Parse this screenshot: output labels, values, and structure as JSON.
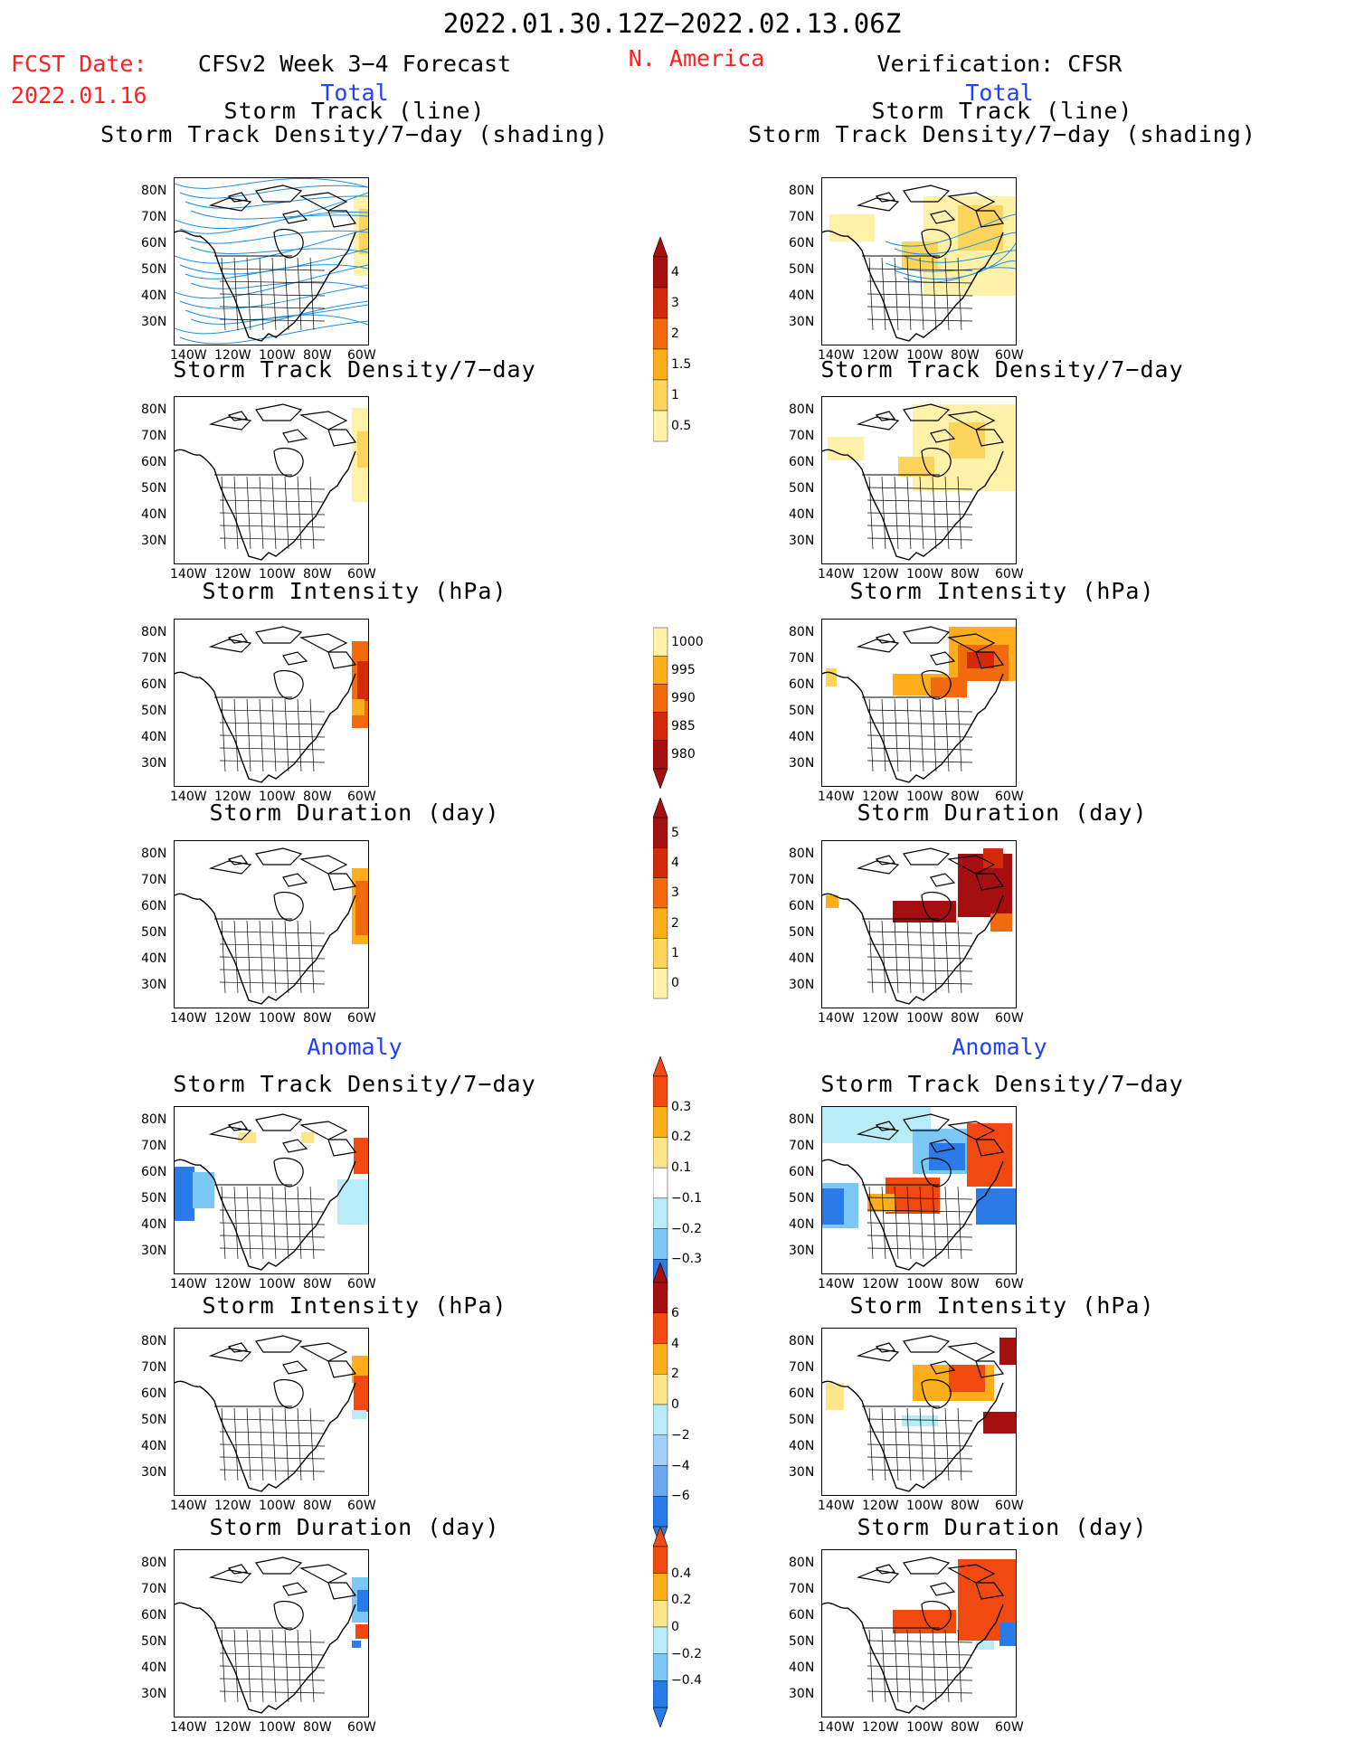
{
  "header": {
    "period": "2022.01.30.12Z−2022.02.13.06Z",
    "region": "N. America",
    "fcst_label": "FCST Date:",
    "fcst_date": "2022.01.16",
    "left_title": "CFSv2 Week 3−4 Forecast",
    "right_title": "Verification: CFSR",
    "total_label": "Total",
    "anomaly_label": "Anomaly"
  },
  "panel_titles": {
    "track_line": "Storm Track (line)",
    "track_shading": "Storm Track Density/7−day (shading)",
    "density": "Storm Track Density/7−day",
    "intensity": "Storm Intensity (hPa)",
    "duration": "Storm Duration (day)"
  },
  "axes": {
    "lat_labels": [
      "80N",
      "70N",
      "60N",
      "50N",
      "40N",
      "30N"
    ],
    "lon_labels": [
      "140W",
      "120W",
      "100W",
      "80W",
      "60W"
    ]
  },
  "colorbars": {
    "density_total": {
      "labels": [
        "4",
        "3",
        "2",
        "1.5",
        "1",
        "0.5"
      ],
      "colors": [
        "#a50f0f",
        "#d42a0c",
        "#f26a0e",
        "#fdae1a",
        "#fdd55c",
        "#fff2a8"
      ]
    },
    "intensity_total": {
      "labels": [
        "1000",
        "995",
        "990",
        "985",
        "980"
      ],
      "colors": [
        "#fff2a8",
        "#fdae1a",
        "#f26a0e",
        "#d42a0c",
        "#a50f0f"
      ]
    },
    "duration_total": {
      "labels": [
        "5",
        "4",
        "3",
        "2",
        "1",
        "0"
      ],
      "colors": [
        "#a50f0f",
        "#d42a0c",
        "#f26a0e",
        "#fdae1a",
        "#fdd55c",
        "#fff2a8"
      ]
    },
    "density_anom": {
      "labels": [
        "0.3",
        "0.2",
        "0.1",
        "−0.1",
        "−0.2",
        "−0.3"
      ],
      "colors": [
        "#f04a10",
        "#fdae1a",
        "#fde68a",
        "#ffffff",
        "#b8ecf8",
        "#7cc8f4",
        "#2a7be8"
      ]
    },
    "intensity_anom": {
      "labels": [
        "6",
        "4",
        "2",
        "0",
        "−2",
        "−4",
        "−6"
      ],
      "colors": [
        "#a50f0f",
        "#f04a10",
        "#fdae1a",
        "#fde68a",
        "#b8ecf8",
        "#a0d0f8",
        "#6aa8f0",
        "#2a7be8"
      ]
    },
    "duration_anom": {
      "labels": [
        "0.4",
        "0.2",
        "0",
        "−0.2",
        "−0.4"
      ],
      "colors": [
        "#f04a10",
        "#fdae1a",
        "#fde68a",
        "#b8ecf8",
        "#7cc8f4",
        "#2a7be8"
      ]
    }
  },
  "colors": {
    "red_text": "#ff2020",
    "blue_text": "#2040ff",
    "track_line": "#1e90e0"
  }
}
